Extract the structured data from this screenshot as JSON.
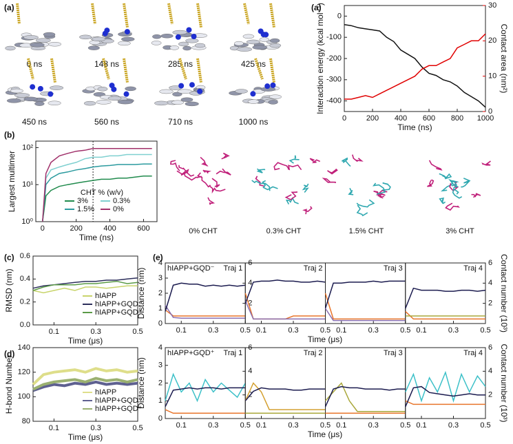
{
  "panel_labels": [
    "(a)",
    "(a)",
    "(b)",
    "(c)",
    "(d)",
    "(e)"
  ],
  "snapshots": {
    "a": [
      "0 ns",
      "148 ns",
      "285 ns",
      "425 ns",
      "450 ns",
      "560 ns",
      "710 ns",
      "1000 ns"
    ],
    "b": [
      "0% CHT",
      "0.3% CHT",
      "1.5% CHT",
      "3% CHT"
    ]
  },
  "chart_data": [
    {
      "type": "line",
      "xlabel": "Time (ns)",
      "ylabel": "Interaction energy (kcal mol⁻¹)",
      "y2label": "Contact area (nm²)",
      "y2color": "#e00000",
      "x": [
        0,
        50,
        100,
        150,
        200,
        250,
        300,
        350,
        400,
        450,
        500,
        550,
        600,
        650,
        700,
        750,
        800,
        850,
        900,
        950,
        1000
      ],
      "series": [
        {
          "color": "#111111",
          "values": [
            -40,
            -45,
            -55,
            -60,
            -65,
            -70,
            -100,
            -120,
            -160,
            -180,
            -200,
            -240,
            -270,
            -280,
            -300,
            -310,
            -330,
            -360,
            -380,
            -400,
            -430
          ]
        },
        {
          "color": "#e00000",
          "axis": "y2",
          "values": [
            3.5,
            3.5,
            4,
            4.5,
            4,
            5,
            6,
            7,
            8,
            9,
            10,
            12,
            13,
            13,
            14,
            15,
            18,
            19,
            20,
            20,
            22
          ]
        }
      ],
      "xlim": [
        0,
        1000
      ],
      "xticks": [
        0,
        200,
        400,
        600,
        800,
        1000
      ],
      "ylim": [
        -450,
        50
      ],
      "yticks": [
        0,
        -100,
        -200,
        -300,
        -400
      ],
      "y2lim": [
        0,
        30
      ],
      "y2ticks": [
        0,
        10,
        20,
        30
      ]
    },
    {
      "type": "line",
      "xlabel": "Time (ns)",
      "ylabel": "Largest multimer",
      "log_y": true,
      "legend_title": "CHT % (w/v)",
      "legend": "lower center",
      "ncol": 2,
      "reference_x": 300,
      "x": [
        0,
        20,
        50,
        100,
        150,
        200,
        250,
        300,
        350,
        400,
        450,
        500,
        550,
        600,
        650
      ],
      "series": [
        {
          "name": "3%",
          "color": "#1f8a4c",
          "values": [
            1,
            5,
            7,
            9,
            10,
            11,
            12,
            13,
            14,
            14,
            15,
            15,
            16,
            17,
            17
          ]
        },
        {
          "name": "0.3%",
          "color": "#7fd0d0",
          "values": [
            1,
            15,
            25,
            30,
            35,
            40,
            50,
            55,
            55,
            60,
            60,
            65,
            65,
            65,
            65
          ]
        },
        {
          "name": "1.5%",
          "color": "#2a9a9e",
          "values": [
            1,
            10,
            15,
            20,
            22,
            25,
            27,
            30,
            32,
            33,
            35,
            35,
            35,
            36,
            36
          ]
        },
        {
          "name": "0%",
          "color": "#a0306a",
          "values": [
            1,
            20,
            40,
            60,
            70,
            80,
            85,
            95,
            95,
            95,
            95,
            95,
            95,
            95,
            95
          ]
        }
      ],
      "xlim": [
        -40,
        680
      ],
      "xticks": [
        0,
        200,
        400,
        600
      ],
      "ylim": [
        1,
        150
      ],
      "yticks": [
        {
          "value": 1,
          "label": "10⁰"
        },
        {
          "value": 10,
          "label": "10¹"
        },
        {
          "value": 100,
          "label": "10²"
        }
      ]
    },
    {
      "type": "line",
      "xlabel": "Time (μs)",
      "ylabel": "RMSD (nm)",
      "legend": "lower right",
      "x": [
        0,
        0.05,
        0.1,
        0.15,
        0.2,
        0.25,
        0.3,
        0.35,
        0.4,
        0.45,
        0.5
      ],
      "series": [
        {
          "name": "hIAPP",
          "color": "#c8d46a",
          "values": [
            0.3,
            0.28,
            0.3,
            0.32,
            0.3,
            0.33,
            0.33,
            0.32,
            0.33,
            0.34,
            0.34
          ]
        },
        {
          "name": "hIAPP+GQD⁻",
          "color": "#2b2d5a",
          "values": [
            0.32,
            0.34,
            0.35,
            0.36,
            0.37,
            0.38,
            0.38,
            0.39,
            0.39,
            0.4,
            0.41
          ]
        },
        {
          "name": "hIAPP+GQD⁺",
          "color": "#5a9a46",
          "values": [
            0.3,
            0.33,
            0.35,
            0.35,
            0.35,
            0.36,
            0.36,
            0.37,
            0.38,
            0.36,
            0.37
          ]
        }
      ],
      "xlim": [
        0,
        0.5
      ],
      "xticks": [
        0.1,
        0.3,
        0.5
      ],
      "ylim": [
        0,
        0.6
      ],
      "yticks": [
        {
          "value": 0,
          "label": "0.0"
        },
        0.2,
        0.4,
        0.6
      ]
    },
    {
      "type": "line",
      "xlabel": "Time (μs)",
      "ylabel": "H-bond Number",
      "legend": "lower right",
      "x": [
        0,
        0.05,
        0.1,
        0.15,
        0.2,
        0.25,
        0.3,
        0.35,
        0.4,
        0.45,
        0.5
      ],
      "series": [
        {
          "name": "hIAPP",
          "color": "#dede8a",
          "values": [
            110,
            118,
            120,
            121,
            122,
            120,
            123,
            121,
            122,
            120,
            121
          ]
        },
        {
          "name": "hIAPP+GQD⁻",
          "color": "#5e6090",
          "values": [
            105,
            108,
            110,
            109,
            111,
            110,
            112,
            110,
            111,
            110,
            111
          ]
        },
        {
          "name": "hIAPP+GQD⁺",
          "color": "#9ab070",
          "values": [
            106,
            110,
            112,
            113,
            114,
            112,
            115,
            113,
            114,
            112,
            114
          ]
        }
      ],
      "xlim": [
        0,
        0.5
      ],
      "xticks": [
        0.1,
        0.3,
        0.5
      ],
      "ylim": [
        80,
        140
      ],
      "yticks": [
        80,
        100,
        120,
        140
      ]
    },
    {
      "type": "line",
      "title": "Traj 1",
      "row_label": "hIAPP+GQD⁻",
      "ylabel": "Distance (nm)",
      "xlabel": "Time (μs)",
      "x": [
        0,
        0.05,
        0.1,
        0.15,
        0.2,
        0.25,
        0.3,
        0.35,
        0.4,
        0.45,
        0.5
      ],
      "series": [
        {
          "color": "#e8742a",
          "values": [
            0.9,
            0.5,
            0.5,
            0.5,
            0.5,
            0.5,
            0.5,
            0.5,
            0.5,
            0.5,
            0.5
          ]
        },
        {
          "color": "#8a6fb0",
          "values": [
            1.2,
            0.4,
            0.35,
            0.35,
            0.35,
            0.35,
            0.35,
            0.35,
            0.35,
            0.35,
            0.35
          ]
        },
        {
          "color": "#1a1a4e",
          "axis": "y2",
          "values": [
            1.2,
            3.8,
            4,
            3.9,
            3.9,
            3.7,
            3.8,
            3.7,
            3.8,
            3.7,
            3.8
          ]
        }
      ],
      "xlim": [
        0,
        0.5
      ],
      "xticks": [
        0.1,
        0.3,
        0.5
      ],
      "ylim": [
        0,
        4
      ],
      "yticks": [
        0,
        1,
        2,
        3,
        4
      ],
      "y2lim": [
        0,
        6
      ],
      "y2ticks": [
        2,
        4,
        6
      ]
    },
    {
      "type": "line",
      "title": "Traj 2",
      "x": [
        0,
        0.05,
        0.1,
        0.15,
        0.2,
        0.25,
        0.3,
        0.35,
        0.4,
        0.45,
        0.5
      ],
      "series": [
        {
          "color": "#e8742a",
          "values": [
            2,
            0.3,
            0.3,
            0.3,
            0.3,
            0.3,
            0.5,
            0.5,
            0.5,
            0.5,
            0.5
          ]
        },
        {
          "color": "#8a6fb0",
          "values": [
            1.5,
            0.3,
            0.3,
            0.3,
            0.3,
            0.3,
            0.3,
            0.3,
            0.3,
            0.3,
            0.3
          ]
        },
        {
          "color": "#1a1a4e",
          "axis": "y2",
          "values": [
            2,
            4.1,
            4.2,
            4.2,
            4.3,
            4.2,
            4.2,
            4.1,
            4.1,
            4.2,
            4.1
          ]
        }
      ],
      "xlim": [
        0,
        0.5
      ],
      "xticks": [
        0.1,
        0.3,
        0.5
      ],
      "ylim": [
        0,
        4
      ],
      "y2lim": [
        0,
        6
      ]
    },
    {
      "type": "line",
      "title": "Traj 3",
      "x": [
        0,
        0.05,
        0.1,
        0.15,
        0.2,
        0.25,
        0.3,
        0.35,
        0.4,
        0.45,
        0.5
      ],
      "series": [
        {
          "color": "#e8742a",
          "values": [
            2,
            0.3,
            0.3,
            0.3,
            0.3,
            0.3,
            0.3,
            0.3,
            0.3,
            0.3,
            0.3
          ]
        },
        {
          "color": "#8a6fb0",
          "values": [
            1,
            0.2,
            0.2,
            0.2,
            0.2,
            0.2,
            0.2,
            0.2,
            0.2,
            0.2,
            0.2
          ]
        },
        {
          "color": "#1a1a4e",
          "axis": "y2",
          "values": [
            1.5,
            4,
            4,
            4.1,
            4.1,
            4.1,
            4.2,
            4.1,
            4.2,
            4.2,
            4.2
          ]
        }
      ],
      "xlim": [
        0,
        0.5
      ],
      "xticks": [
        0.1,
        0.3,
        0.5
      ],
      "ylim": [
        0,
        4
      ],
      "y2lim": [
        0,
        6
      ]
    },
    {
      "type": "line",
      "title": "Traj 4",
      "y2label": "Contact number (10³)",
      "x": [
        0,
        0.05,
        0.1,
        0.15,
        0.2,
        0.25,
        0.3,
        0.35,
        0.4,
        0.45,
        0.5
      ],
      "series": [
        {
          "color": "#e8742a",
          "values": [
            0.8,
            0.3,
            0.3,
            0.3,
            0.3,
            0.3,
            0.3,
            0.3,
            0.3,
            0.3,
            0.3
          ]
        },
        {
          "color": "#a9a73a",
          "values": [
            0.5,
            0.5,
            0.5,
            0.5,
            0.5,
            0.5,
            0.5,
            0.5,
            0.5,
            0.5,
            0.5
          ]
        },
        {
          "color": "#1a1a4e",
          "axis": "y2",
          "values": [
            1.5,
            3.5,
            3.3,
            3.3,
            3.3,
            3.2,
            3.2,
            3.3,
            3.3,
            3.2,
            3.3
          ]
        }
      ],
      "xlim": [
        0,
        0.5
      ],
      "xticks": [
        0.1,
        0.3,
        0.5
      ],
      "ylim": [
        0,
        4
      ],
      "y2lim": [
        0,
        6
      ],
      "y2ticks": [
        2,
        4,
        6
      ]
    },
    {
      "type": "line",
      "title": "Traj 1",
      "row_label": "hIAPP+GQD⁺",
      "ylabel": "Distance (nm)",
      "xlabel": "Time (μs)",
      "x": [
        0,
        0.05,
        0.1,
        0.15,
        0.2,
        0.25,
        0.3,
        0.35,
        0.4,
        0.45,
        0.5
      ],
      "series": [
        {
          "color": "#3cc0c8",
          "values": [
            1,
            2.5,
            1.5,
            2,
            1,
            2.2,
            1.5,
            2,
            1.6,
            1.2,
            2
          ]
        },
        {
          "color": "#e8742a",
          "values": [
            0.5,
            0.3,
            0.3,
            0.3,
            0.3,
            0.3,
            0.3,
            0.3,
            0.3,
            0.3,
            0.3
          ]
        },
        {
          "color": "#1a1a4e",
          "axis": "y2",
          "values": [
            1,
            2.4,
            2.5,
            2.6,
            2.5,
            2.6,
            2.6,
            2.5,
            2.6,
            2.6,
            2.6
          ]
        }
      ],
      "xlim": [
        0,
        0.5
      ],
      "xticks": [
        0.1,
        0.3,
        0.5
      ],
      "ylim": [
        0,
        4
      ],
      "yticks": [
        0,
        1,
        2,
        3,
        4
      ],
      "y2lim": [
        0,
        6
      ],
      "y2ticks": [
        2,
        4,
        6
      ]
    },
    {
      "type": "line",
      "title": "Traj 2",
      "x": [
        0,
        0.05,
        0.1,
        0.15,
        0.2,
        0.25,
        0.3,
        0.35,
        0.4,
        0.45,
        0.5
      ],
      "series": [
        {
          "color": "#d4a030",
          "values": [
            1,
            2,
            1.5,
            0.5,
            0.5,
            0.5,
            0.5,
            0.5,
            0.5,
            0.5,
            0.5
          ]
        },
        {
          "color": "#a9a73a",
          "values": [
            0.3,
            0.3,
            0.3,
            0.3,
            0.3,
            0.3,
            0.3,
            0.3,
            0.3,
            0.3,
            0.3
          ]
        },
        {
          "color": "#1a1a4e",
          "axis": "y2",
          "values": [
            1.5,
            2.3,
            2.6,
            2.5,
            2.5,
            2.5,
            2.4,
            2.4,
            2.5,
            2.5,
            2.5
          ]
        }
      ],
      "xlim": [
        0,
        0.5
      ],
      "xticks": [
        0.1,
        0.3,
        0.5
      ],
      "ylim": [
        0,
        4
      ],
      "y2lim": [
        0,
        6
      ]
    },
    {
      "type": "line",
      "title": "Traj 3",
      "x": [
        0,
        0.05,
        0.1,
        0.15,
        0.2,
        0.25,
        0.3,
        0.35,
        0.4,
        0.45,
        0.5
      ],
      "series": [
        {
          "color": "#a9a73a",
          "values": [
            1,
            1.5,
            2,
            1,
            0.4,
            0.4,
            0.4,
            0.4,
            0.4,
            0.4,
            0.4
          ]
        },
        {
          "color": "#e8742a",
          "values": [
            0.3,
            0.3,
            0.3,
            0.3,
            0.3,
            0.3,
            0.3,
            0.3,
            0.3,
            0.3,
            0.3
          ]
        },
        {
          "color": "#1a1a4e",
          "axis": "y2",
          "values": [
            1,
            2.5,
            2.7,
            2.6,
            2.6,
            2.5,
            2.5,
            2.5,
            2.4,
            2.5,
            2.5
          ]
        }
      ],
      "xlim": [
        0,
        0.5
      ],
      "xticks": [
        0.1,
        0.3,
        0.5
      ],
      "ylim": [
        0,
        4
      ],
      "y2lim": [
        0,
        6
      ]
    },
    {
      "type": "line",
      "title": "Traj 4",
      "y2label": "Contact number (10³)",
      "x": [
        0,
        0.05,
        0.1,
        0.15,
        0.2,
        0.25,
        0.3,
        0.35,
        0.4,
        0.45,
        0.5
      ],
      "series": [
        {
          "color": "#3cc0c8",
          "values": [
            1.5,
            2.5,
            1,
            2.3,
            1.5,
            2.6,
            1,
            2.5,
            1.5,
            2.4,
            1.8
          ]
        },
        {
          "color": "#e8742a",
          "values": [
            1,
            0.8,
            0.8,
            0.8,
            0.8,
            0.8,
            0.8,
            0.8,
            0.8,
            0.8,
            0.8
          ]
        },
        {
          "color": "#1a1a4e",
          "axis": "y2",
          "values": [
            1,
            2.6,
            2.7,
            2.2,
            2.1,
            2,
            1.9,
            2,
            2.1,
            2,
            2
          ]
        }
      ],
      "xlim": [
        0,
        0.5
      ],
      "xticks": [
        0.1,
        0.3,
        0.5
      ],
      "ylim": [
        0,
        4
      ],
      "y2lim": [
        0,
        6
      ],
      "y2ticks": [
        2,
        4,
        6
      ]
    }
  ]
}
